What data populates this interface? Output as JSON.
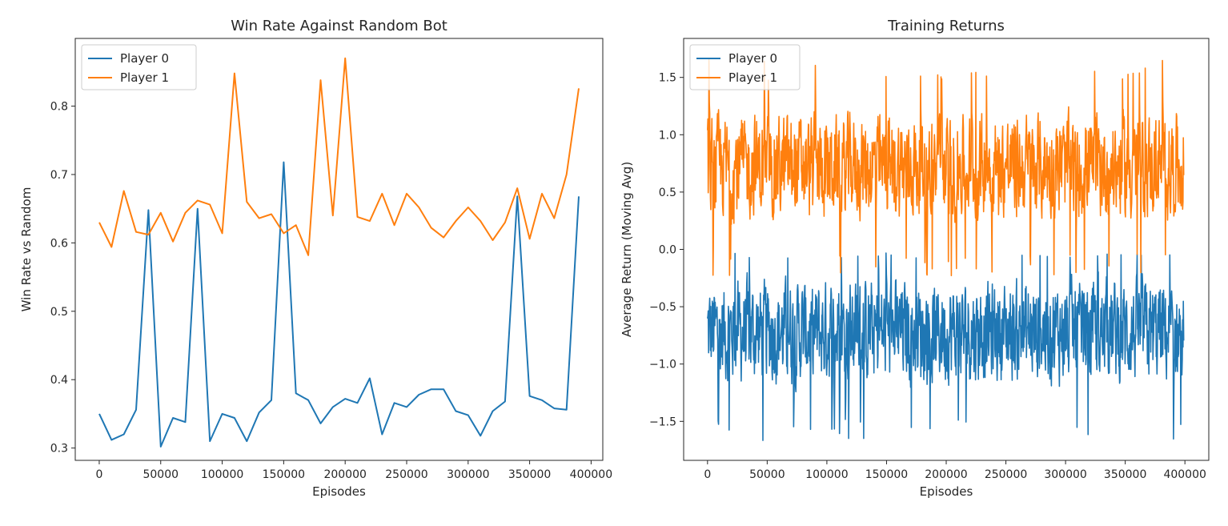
{
  "chart_data": [
    {
      "type": "line",
      "title": "Win Rate Against Random Bot",
      "xlabel": "Episodes",
      "ylabel": "Win Rate vs Random",
      "xlim": [
        -19500,
        409500
      ],
      "ylim": [
        0.282,
        0.899
      ],
      "xticks": [
        0,
        50000,
        100000,
        150000,
        200000,
        250000,
        300000,
        350000,
        400000
      ],
      "xtick_labels": [
        "0",
        "50000",
        "100000",
        "150000",
        "200000",
        "250000",
        "300000",
        "350000",
        "400000"
      ],
      "yticks": [
        0.3,
        0.4,
        0.5,
        0.6,
        0.7,
        0.8
      ],
      "ytick_labels": [
        "0.3",
        "0.4",
        "0.5",
        "0.6",
        "0.7",
        "0.8"
      ],
      "legend": "top-left",
      "grid": false,
      "x": [
        0,
        10000,
        20000,
        30000,
        40000,
        50000,
        60000,
        70000,
        80000,
        90000,
        100000,
        110000,
        120000,
        130000,
        140000,
        150000,
        160000,
        170000,
        180000,
        190000,
        200000,
        210000,
        220000,
        230000,
        240000,
        250000,
        260000,
        270000,
        280000,
        290000,
        300000,
        310000,
        320000,
        330000,
        340000,
        350000,
        360000,
        370000,
        380000,
        390000
      ],
      "series": [
        {
          "name": "Player 0",
          "color": "#1f77b4",
          "values": [
            0.35,
            0.312,
            0.32,
            0.356,
            0.648,
            0.302,
            0.344,
            0.338,
            0.65,
            0.31,
            0.35,
            0.344,
            0.31,
            0.352,
            0.37,
            0.718,
            0.38,
            0.37,
            0.336,
            0.36,
            0.372,
            0.366,
            0.402,
            0.32,
            0.366,
            0.36,
            0.378,
            0.386,
            0.386,
            0.354,
            0.348,
            0.318,
            0.354,
            0.368,
            0.668,
            0.376,
            0.37,
            0.358,
            0.356,
            0.668
          ]
        },
        {
          "name": "Player 1",
          "color": "#ff7f0e",
          "values": [
            0.63,
            0.594,
            0.676,
            0.616,
            0.612,
            0.644,
            0.602,
            0.644,
            0.662,
            0.656,
            0.614,
            0.848,
            0.66,
            0.636,
            0.642,
            0.614,
            0.626,
            0.582,
            0.838,
            0.64,
            0.87,
            0.638,
            0.632,
            0.672,
            0.626,
            0.672,
            0.652,
            0.622,
            0.608,
            0.632,
            0.652,
            0.632,
            0.604,
            0.63,
            0.68,
            0.606,
            0.672,
            0.636,
            0.7,
            0.826
          ]
        }
      ]
    },
    {
      "type": "line",
      "title": "Training Returns",
      "xlabel": "Episodes",
      "ylabel": "Average Return (Moving Avg)",
      "xlim": [
        -20000,
        420000
      ],
      "ylim": [
        -1.84,
        1.84
      ],
      "xticks": [
        0,
        50000,
        100000,
        150000,
        200000,
        250000,
        300000,
        350000,
        400000
      ],
      "xtick_labels": [
        "0",
        "50000",
        "100000",
        "150000",
        "200000",
        "250000",
        "300000",
        "350000",
        "400000"
      ],
      "yticks": [
        -1.5,
        -1.0,
        -0.5,
        0.0,
        0.5,
        1.0,
        1.5
      ],
      "ytick_labels": [
        "−1.5",
        "−1.0",
        "−0.5",
        "0.0",
        "0.5",
        "1.0",
        "1.5"
      ],
      "legend": "top-left",
      "grid": false,
      "x_range": [
        0,
        399000
      ],
      "series": [
        {
          "name": "Player 0",
          "color": "#1f77b4",
          "mean": -0.72,
          "min": -1.68,
          "max": -0.03
        },
        {
          "name": "Player 1",
          "color": "#ff7f0e",
          "mean": 0.72,
          "min": -0.3,
          "max": 1.68
        }
      ]
    }
  ]
}
